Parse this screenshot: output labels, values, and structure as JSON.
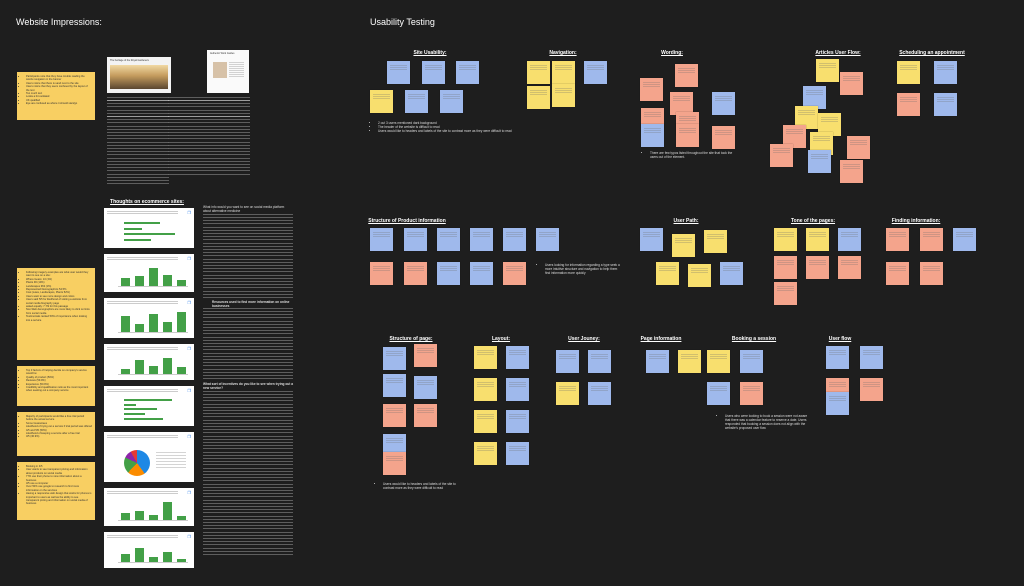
{
  "titles": {
    "website_impressions": "Website Impressions:",
    "usability_testing": "Usability Testing"
  },
  "left": {
    "thoughts_heading": "Thoughts on ecommerce sites:",
    "screenshot_caption_1": "The heritage of the Royal Gardeners",
    "screenshot_caption_2": "Authentic Work Guides",
    "impressions_note": [
      "Participants note that they have trouble reading the words navigation in the banner",
      "Users notice that there is sand next to the site",
      "Users notice that they seem confused by the layout of the text",
      "Too much text",
      "Looks a bit outdated",
      "UK qualified",
      "Eye are confused as where it should start/go"
    ],
    "thoughts_note_1": [
      "Following imagery examples are what user would they want to see on a site:",
      "Where Gears: 13 (1%)",
      "Plants 90 (10%)",
      "Landscapes 363 (1%)",
      "Represented Demographics 54.5%",
      "Cost (Laws, Landscapes, Plants 52%)",
      "Users want to see more design and colors",
      "Users said 5/5 for likelihood of visiting a website from social media biography page",
      "asked equally: 7.7/9 for this passage",
      "Non-Web demographics are more likely to click on links from social media",
      "Testimonials ranked 50% of importance when looking into a service"
    ],
    "thoughts_note_2": [
      "Top 3 factors of helping decide on company's service would be:",
      "Quality of product (50%)",
      "Reviews (59.9%)",
      "Experience (50.9%)",
      "Credibility and qualification rank as the most important when seeking out a company service"
    ],
    "thoughts_note_3": [
      "Majority of participants would like a free trial period before the actual service",
      "Some Guarantees",
      "Likelihood of trying out a service if trial period was offered",
      "4/5 and 5/5 (50%)",
      "Likelihood of keeping a service after a free trial",
      "3/5 (30.9%)"
    ],
    "thoughts_note_4": [
      "Booking in 4/5",
      "User wants to see transparent pricing and information about products on social media",
      "77% use their phone to view information about a business",
      "3/5 use a computer",
      "Over 50% use google to research to find more information on the services",
      "Having a responsive web design that works for phones is important to users as well as the ability to see transparent pricing and information on social media of business"
    ],
    "survey_question_1": "What info would you want to see on social media platform about alternative medicine",
    "survey_question_2": "Resources used to find more information on online businesses",
    "survey_question_3": "What sort of incentives do you like to see when trying out a new service?"
  },
  "sections": {
    "site_usability": "Site Usability:",
    "navigation": "Navigation:",
    "wording": "Wording:",
    "articles_user_flow": "Articles User Flow:",
    "scheduling": "Scheduling an appointment",
    "structure_product_info": "Structure of Product information",
    "user_path": "User Path:",
    "tone_of_pages": "Tone of the pages:",
    "finding_information": "Finding information:",
    "structure_of_page": "Structure of page:",
    "layout": "Layout:",
    "user_journey": "User Jouney:",
    "page_information": "Page information",
    "booking_session": "Booking a session",
    "user_flow": "User flow"
  },
  "findings": {
    "site_usability": [
      "2 out 3 users mentioned dark background",
      "The header of the website is difficult to read",
      "Users would like to headers and labels of the site to contrast more as they were difficult to read"
    ],
    "wording": [
      "There are few typos listed throughout the site that took the users out of the element."
    ],
    "structure_product_info": [
      "Users looking for information regarding a type seek a more intuitive structure and navigation to help them find information more quickly"
    ],
    "structure_of_page": [
      "Users would like to headers and labels of the site to contrast more as they were difficult to read"
    ],
    "booking_session": [
      "Users who were looking to book a session were not aware that there was a calendar feature to reserve a date. Users responded that booking a session does not align with the website's proposed user flow"
    ]
  },
  "colors": {
    "background": "#1e1e1e",
    "yellow_sticky": "#f8df6e",
    "blue_sticky": "#9fb9ec",
    "pink_sticky": "#f4a48c",
    "chart_bar": "#43a047"
  }
}
